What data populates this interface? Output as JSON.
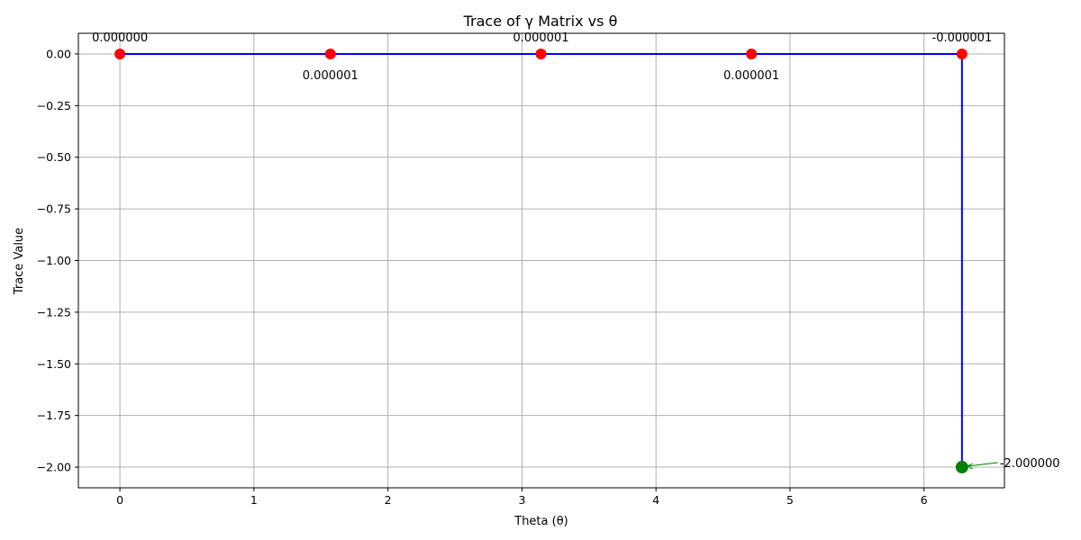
{
  "chart_data": {
    "type": "line",
    "title": "Trace of γ Matrix vs θ",
    "xlabel": "Theta (θ)",
    "ylabel": "Trace Value",
    "xlim": [
      -0.31,
      6.6
    ],
    "ylim": [
      -2.1,
      0.1
    ],
    "xticks": [
      0,
      1,
      2,
      3,
      4,
      5,
      6
    ],
    "xtick_labels": [
      "0",
      "1",
      "2",
      "3",
      "4",
      "5",
      "6"
    ],
    "yticks": [
      0.0,
      -0.25,
      -0.5,
      -0.75,
      -1.0,
      -1.25,
      -1.5,
      -1.75,
      -2.0
    ],
    "ytick_labels": [
      "0.00",
      "−0.25",
      "−0.50",
      "−0.75",
      "−1.00",
      "−1.25",
      "−1.50",
      "−1.75",
      "−2.00"
    ],
    "grid": true,
    "series": [
      {
        "color": "#0000ff",
        "x": [
          0,
          1.5708,
          3.1416,
          4.7124,
          6.2832,
          6.2832
        ],
        "y": [
          0.0,
          0.0,
          0.0,
          0.0,
          0.0,
          -2.0
        ]
      }
    ],
    "points": [
      {
        "x": 0,
        "y": 0.0,
        "label": "0.000000",
        "label_pos": "above",
        "color": "#ff0000"
      },
      {
        "x": 1.5708,
        "y": 0.0,
        "label": "0.000001",
        "label_pos": "below",
        "color": "#ff0000"
      },
      {
        "x": 3.1416,
        "y": 0.0,
        "label": "0.000001",
        "label_pos": "above",
        "color": "#ff0000"
      },
      {
        "x": 4.7124,
        "y": 0.0,
        "label": "0.000001",
        "label_pos": "below",
        "color": "#ff0000"
      },
      {
        "x": 6.2832,
        "y": 0.0,
        "label": "-0.000001",
        "label_pos": "above",
        "color": "#ff0000"
      }
    ],
    "highlight": {
      "x": 6.2832,
      "y": -2.0,
      "label": "-2.000000",
      "color": "#008000"
    }
  }
}
